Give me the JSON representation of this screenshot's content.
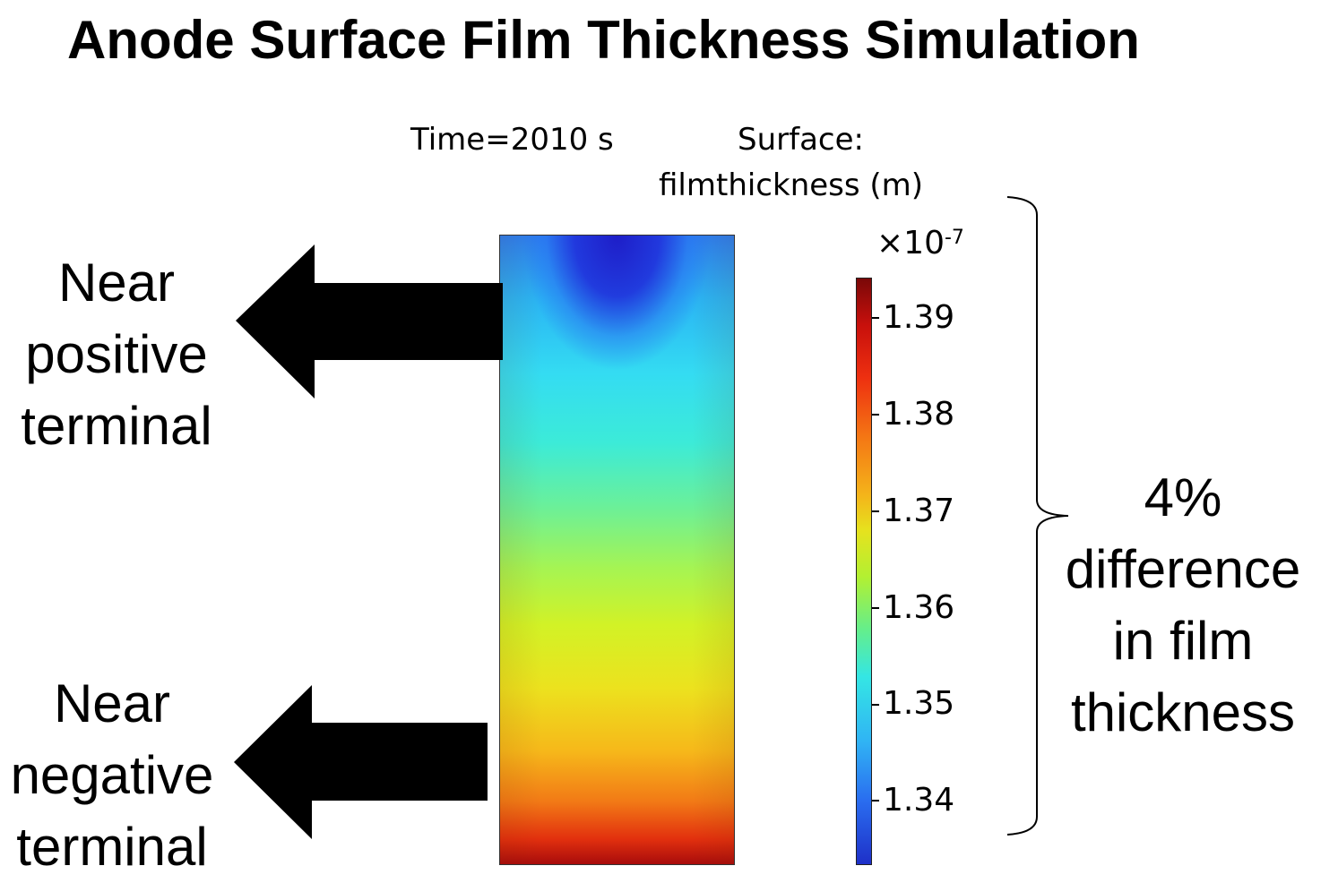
{
  "title": "Anode Surface Film Thickness Simulation",
  "plot": {
    "time_label": "Time=2010 s",
    "surface_label_line1": "Surface:",
    "surface_label_line2": "filmthickness (m)",
    "scale_base": "×10",
    "scale_exponent": "-7",
    "colormap": "jet",
    "colorbar_range": [
      1.335,
      1.395
    ],
    "colorbar_ticks": [
      "1.39",
      "1.38",
      "1.37",
      "1.36",
      "1.35",
      "1.34"
    ]
  },
  "annotations": {
    "top_arrow": [
      "Near",
      "positive",
      "terminal"
    ],
    "bottom_arrow": [
      "Near",
      "negative",
      "terminal"
    ],
    "brace_note": [
      "4%",
      "difference",
      "in film",
      "thickness"
    ]
  },
  "colors": {
    "arrow": "#000000",
    "jet_dark_blue": "#1a1ab4",
    "jet_cyan": "#33e6f0",
    "jet_yellow": "#d4f020",
    "jet_dark_red": "#8a0a0a"
  }
}
